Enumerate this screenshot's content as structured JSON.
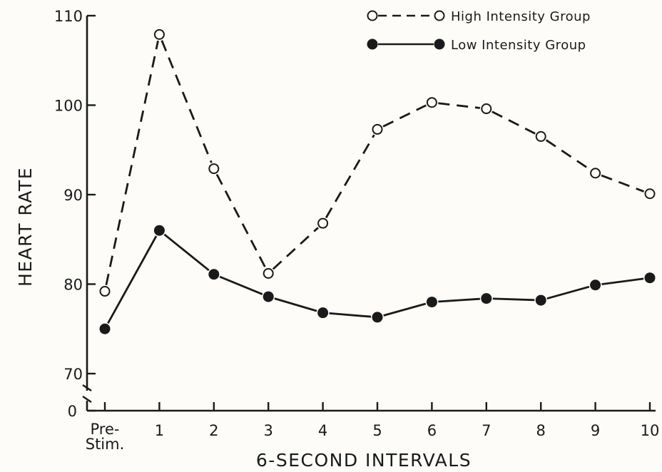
{
  "chart_data": {
    "type": "line",
    "title": "",
    "xlabel": "6-SECOND INTERVALS",
    "ylabel": "HEART RATE",
    "x_ticks": [
      "Pre-\nStim.",
      "1",
      "2",
      "3",
      "4",
      "5",
      "6",
      "7",
      "8",
      "9",
      "10"
    ],
    "y_ticks": [
      "70",
      "80",
      "90",
      "100",
      "110"
    ],
    "y_zero_label": "0",
    "ylim": [
      70,
      110
    ],
    "y_axis_break": true,
    "grid": false,
    "legend_position": "top-right",
    "series": [
      {
        "name": "High Intensity Group",
        "style": "dashed",
        "marker": "open-circle",
        "values": [
          79.2,
          107.9,
          92.9,
          81.2,
          86.8,
          97.3,
          100.3,
          99.6,
          96.5,
          92.4,
          90.1
        ]
      },
      {
        "name": "Low Intensity Group",
        "style": "solid",
        "marker": "filled-circle",
        "values": [
          75.0,
          86.0,
          81.1,
          78.6,
          76.8,
          76.3,
          78.0,
          78.4,
          78.2,
          79.9,
          80.7
        ]
      }
    ],
    "colors": {
      "ink": "#1a1a1a",
      "background": "#fdfcf8"
    }
  }
}
